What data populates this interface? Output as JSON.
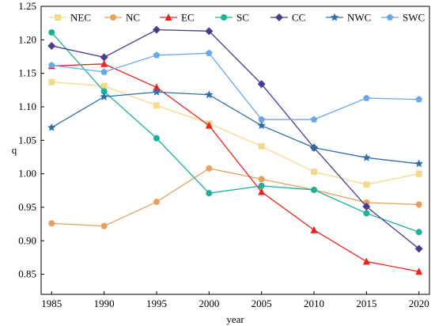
{
  "chart_data": {
    "type": "line",
    "title": "",
    "xlabel": "year",
    "ylabel": "q",
    "x": [
      1985,
      1990,
      1995,
      2000,
      2005,
      2010,
      2015,
      2020
    ],
    "ylim": [
      0.82,
      1.25
    ],
    "yticks": [
      "0.85",
      "0.90",
      "0.95",
      "1.00",
      "1.05",
      "1.10",
      "1.15",
      "1.20",
      "1.25"
    ],
    "xticks": [
      "1985",
      "1990",
      "1995",
      "2000",
      "2005",
      "2010",
      "2015",
      "2020"
    ],
    "grid": false,
    "legend_position": "top",
    "series": [
      {
        "name": "NEC",
        "color": "#f5d98b",
        "marker": "square",
        "values": [
          1.137,
          1.131,
          1.102,
          1.075,
          1.041,
          1.003,
          0.984,
          1.0
        ]
      },
      {
        "name": "NC",
        "color": "#e8a05c",
        "marker": "circle",
        "values": [
          0.926,
          0.922,
          0.958,
          1.008,
          0.992,
          0.976,
          0.957,
          0.954
        ]
      },
      {
        "name": "EC",
        "color": "#e8241c",
        "marker": "triangle",
        "values": [
          1.161,
          1.164,
          1.129,
          1.072,
          0.973,
          0.916,
          0.869,
          0.854
        ]
      },
      {
        "name": "SC",
        "color": "#19b29a",
        "marker": "circle",
        "values": [
          1.211,
          1.123,
          1.053,
          0.971,
          0.982,
          0.976,
          0.941,
          0.913
        ]
      },
      {
        "name": "CC",
        "color": "#4b3a8e",
        "marker": "diamond",
        "values": [
          1.191,
          1.174,
          1.215,
          1.213,
          1.134,
          1.039,
          0.951,
          0.888
        ]
      },
      {
        "name": "NWC",
        "color": "#2f6fa8",
        "marker": "star",
        "values": [
          1.069,
          1.115,
          1.122,
          1.118,
          1.072,
          1.039,
          1.024,
          1.015
        ]
      },
      {
        "name": "SWC",
        "color": "#6aa7e6",
        "marker": "pentagon",
        "values": [
          1.162,
          1.152,
          1.177,
          1.18,
          1.081,
          1.081,
          1.113,
          1.111
        ]
      }
    ]
  }
}
